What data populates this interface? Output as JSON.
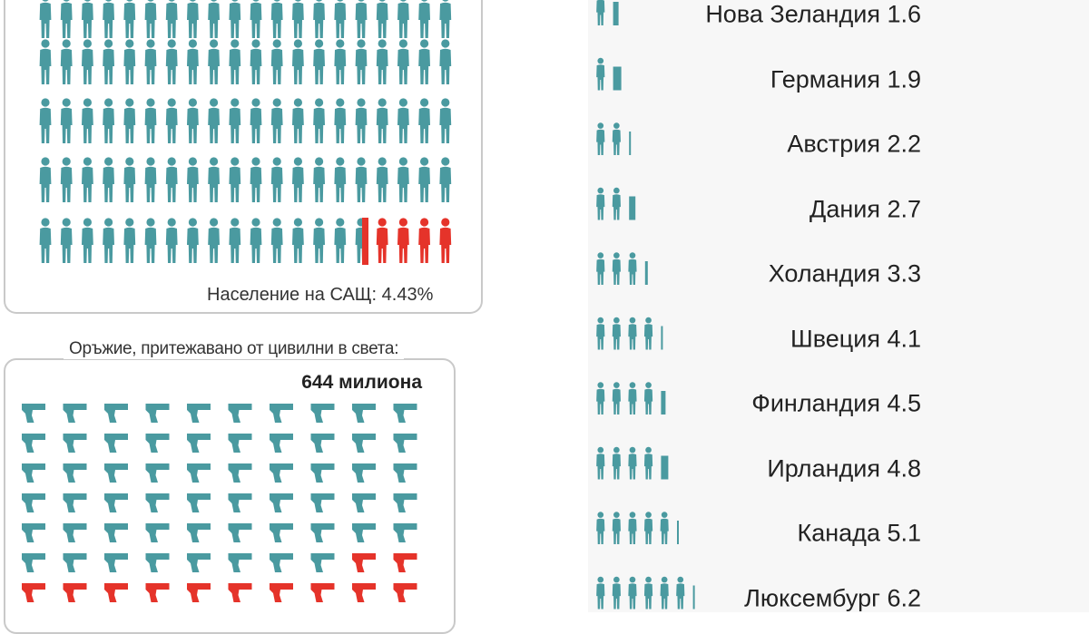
{
  "colors": {
    "teal": "#4a9aa0",
    "red": "#e5332a"
  },
  "population_panel": {
    "caption": "Население на САЩ: 4.43%",
    "icon": "person-icon"
  },
  "guns_panel": {
    "title": "Оръжие, притежавано от цивилни в света:",
    "total": "644 милиона",
    "icon": "pistol-icon"
  },
  "chart_data": {
    "type": "bar",
    "categories": [
      "Нова Зеландия",
      "Германия",
      "Австрия",
      "Дания",
      "Холандия",
      "Швеция",
      "Финландия",
      "Ирландия",
      "Канада",
      "Люксембург"
    ],
    "values": [
      1.6,
      1.9,
      2.2,
      2.7,
      3.3,
      4.1,
      4.5,
      4.8,
      5.1,
      6.2
    ],
    "labels": [
      "Нова Зеландия 1.6",
      "Германия 1.9",
      "Австрия 2.2",
      "Дания 2.7",
      "Холандия 3.3",
      "Швеция 4.1",
      "Финландия 4.5",
      "Ирландия 4.8",
      "Канада 5.1",
      "Люксембург 6.2"
    ]
  }
}
